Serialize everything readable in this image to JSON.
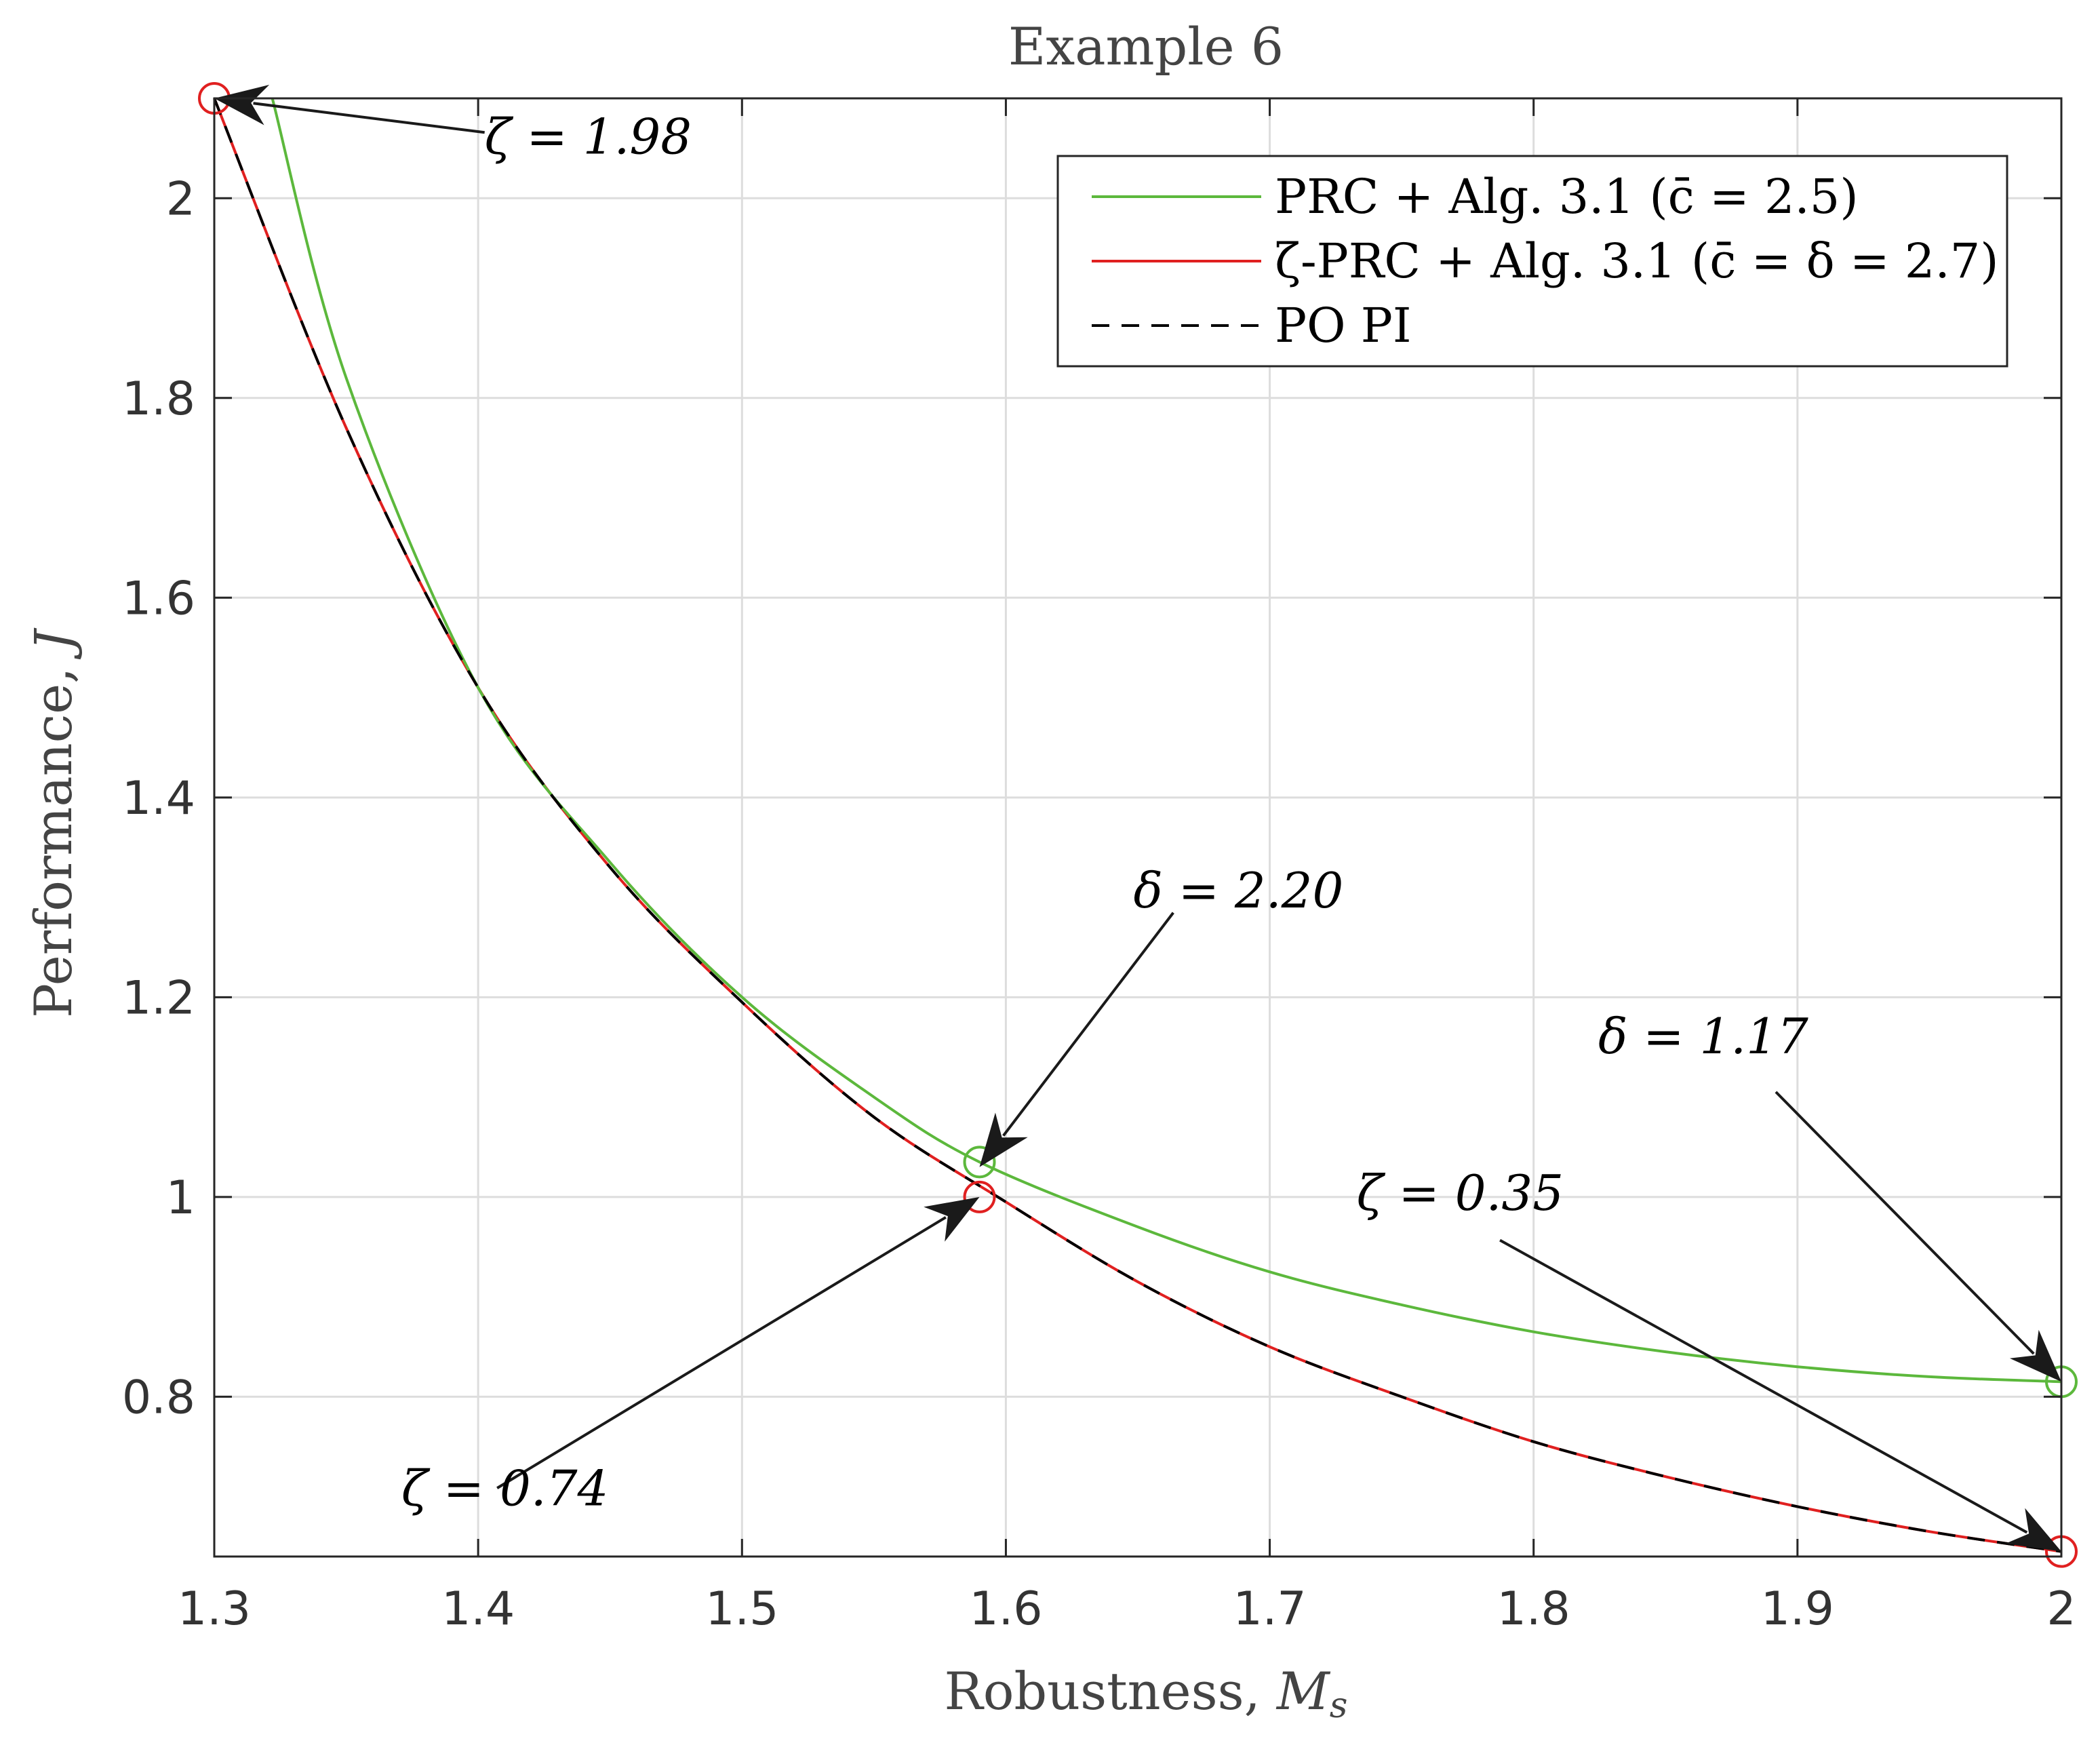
{
  "chart_data": {
    "type": "line",
    "title": "Example 6",
    "xlabel": "Robustness, M_s",
    "xlabel_parts": {
      "text": "Robustness, ",
      "var": "M",
      "sub": "s"
    },
    "ylabel": "Performance, J",
    "ylabel_parts": {
      "text": "Performance, ",
      "var": "J"
    },
    "xlim": [
      1.3,
      2.0
    ],
    "ylim": [
      0.64,
      2.1
    ],
    "x_ticks": [
      1.3,
      1.4,
      1.5,
      1.6,
      1.7,
      1.8,
      1.9,
      2.0
    ],
    "x_tick_labels": [
      "1.3",
      "1.4",
      "1.5",
      "1.6",
      "1.7",
      "1.8",
      "1.9",
      "2"
    ],
    "y_ticks": [
      0.8,
      1.0,
      1.2,
      1.4,
      1.6,
      1.8,
      2.0
    ],
    "y_tick_labels": [
      "0.8",
      "1",
      "1.2",
      "1.4",
      "1.6",
      "1.8",
      "2"
    ],
    "grid": true,
    "legend_position": "top-right",
    "series": [
      {
        "name": "PRC + Alg. 3.1 (c̄ = 2.5)",
        "color": "#5cb83c",
        "style": "solid",
        "x": [
          1.322,
          1.35,
          1.4,
          1.45,
          1.5,
          1.55,
          1.59,
          1.65,
          1.7,
          1.75,
          1.8,
          1.85,
          1.9,
          1.95,
          2.0
        ],
        "y": [
          2.1,
          1.82,
          1.51,
          1.335,
          1.2,
          1.1,
          1.035,
          0.97,
          0.925,
          0.892,
          0.865,
          0.845,
          0.83,
          0.82,
          0.815
        ]
      },
      {
        "name": "ζ-PRC + Alg. 3.1 (c̄ = δ = 2.7)",
        "color": "#e02020",
        "style": "solid",
        "x": [
          1.3,
          1.35,
          1.4,
          1.45,
          1.5,
          1.55,
          1.6,
          1.65,
          1.7,
          1.75,
          1.8,
          1.85,
          1.9,
          1.95,
          2.0
        ],
        "y": [
          2.1,
          1.77,
          1.51,
          1.33,
          1.195,
          1.08,
          0.995,
          0.915,
          0.85,
          0.8,
          0.755,
          0.72,
          0.69,
          0.665,
          0.645
        ]
      },
      {
        "name": "PO PI",
        "color": "#000000",
        "style": "dashed",
        "x": [
          1.3,
          1.35,
          1.4,
          1.45,
          1.5,
          1.55,
          1.6,
          1.65,
          1.7,
          1.75,
          1.8,
          1.85,
          1.9,
          1.95,
          2.0
        ],
        "y": [
          2.1,
          1.77,
          1.51,
          1.33,
          1.195,
          1.08,
          0.995,
          0.915,
          0.85,
          0.8,
          0.755,
          0.72,
          0.69,
          0.665,
          0.645
        ]
      }
    ],
    "markers": [
      {
        "x": 1.3,
        "y": 2.1,
        "color": "#e02020"
      },
      {
        "x": 1.59,
        "y": 1.0,
        "color": "#e02020"
      },
      {
        "x": 2.0,
        "y": 0.645,
        "color": "#e02020"
      },
      {
        "x": 1.59,
        "y": 1.035,
        "color": "#5cb83c"
      },
      {
        "x": 2.0,
        "y": 0.815,
        "color": "#5cb83c"
      }
    ],
    "annotations": [
      {
        "text": "ζ = 1.98",
        "text_x": 1.405,
        "text_y": 2.065,
        "tip_x": 1.3,
        "tip_y": 2.1
      },
      {
        "text": "δ = 2.20",
        "text_x": 1.665,
        "text_y": 1.29,
        "tip_x": 1.59,
        "tip_y": 1.03
      },
      {
        "text": "ζ = 0.74",
        "text_x": 1.405,
        "text_y": 0.705,
        "tip_x": 1.59,
        "tip_y": 1.0
      },
      {
        "text": "δ = 1.17",
        "text_x": 1.89,
        "text_y": 1.11,
        "tip_x": 2.0,
        "tip_y": 0.815
      },
      {
        "text": "ζ = 0.35",
        "text_x": 1.785,
        "text_y": 0.96,
        "tip_x": 2.0,
        "tip_y": 0.645
      }
    ]
  }
}
